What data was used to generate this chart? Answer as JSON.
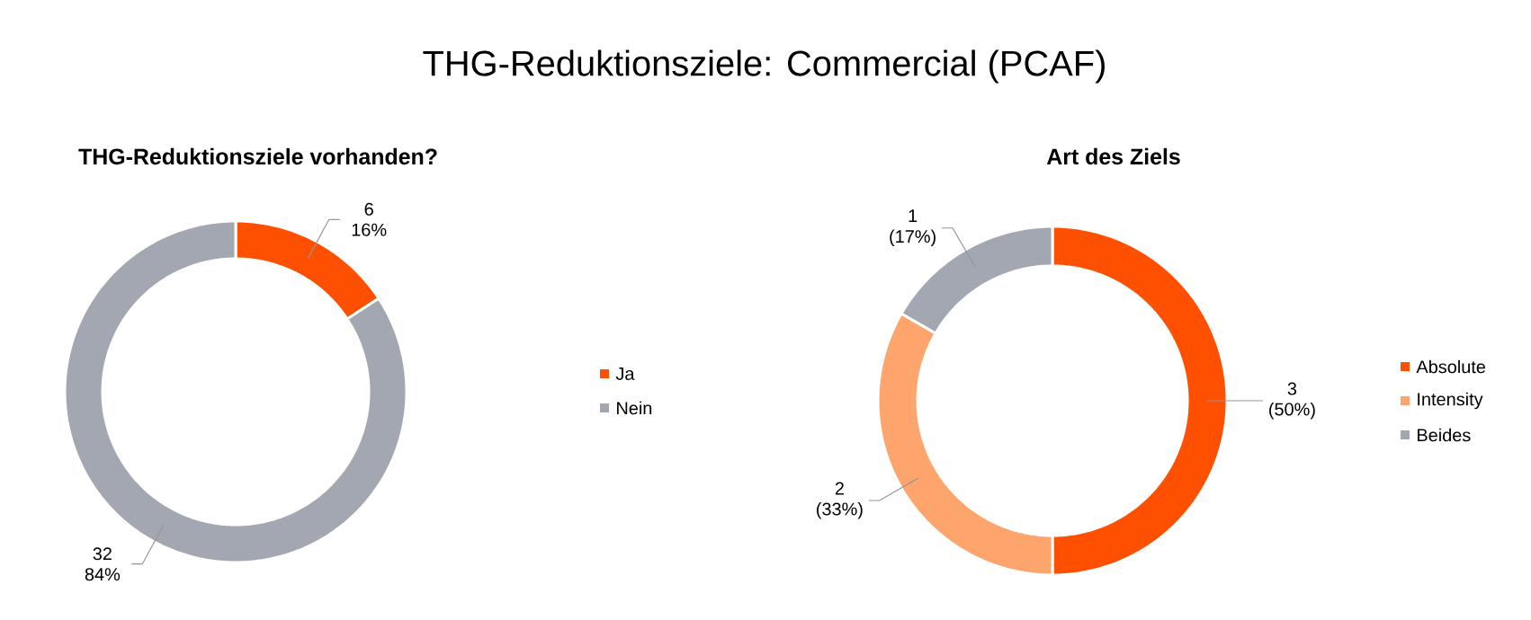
{
  "chart_data": [
    {
      "type": "donut",
      "title": "THG-Reduktionsziele: Commercial (PCAF)",
      "subtitle": "THG-Reduktionsziele vorhanden?",
      "categories": [
        "Ja",
        "Nein"
      ],
      "values": [
        6,
        32
      ],
      "colors": [
        "#fe5000",
        "#a2a7b1"
      ],
      "value_labels": [
        "6 16%",
        "32 84%"
      ],
      "legend": "right"
    },
    {
      "type": "donut",
      "title": "Art des Ziels",
      "categories": [
        "Absolute",
        "Intensity",
        "Beides"
      ],
      "values": [
        3,
        2,
        1
      ],
      "colors": [
        "#fe5000",
        "#fea56e",
        "#a2a7b1"
      ],
      "value_labels": [
        "3 (50%)",
        "2 (33%)",
        "1 (17%)"
      ],
      "legend": "right"
    }
  ]
}
